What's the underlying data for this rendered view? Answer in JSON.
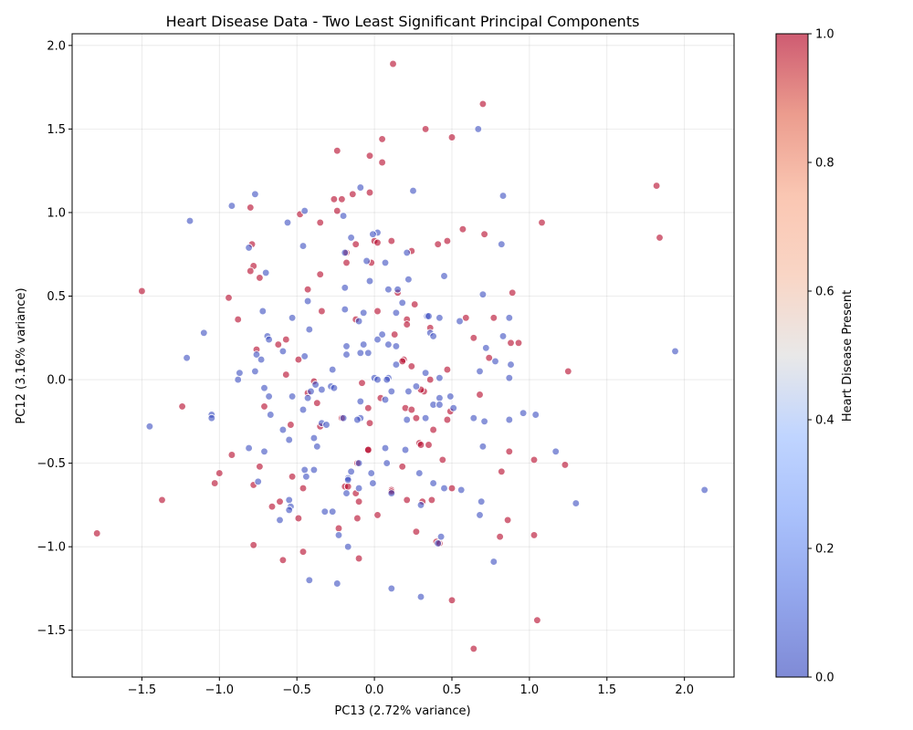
{
  "chart_data": {
    "type": "scatter",
    "title": "Heart Disease Data - Two Least Significant Principal Components",
    "xlabel": "PC13 (2.72% variance)",
    "ylabel": "PC12 (3.16% variance)",
    "xlim": [
      -1.95,
      2.32
    ],
    "ylim": [
      -1.78,
      2.07
    ],
    "grid": true,
    "xticks": [
      -1.5,
      -1.0,
      -0.5,
      0.0,
      0.5,
      1.0,
      1.5,
      2.0
    ],
    "xtick_labels": [
      "−1.5",
      "−1.0",
      "−0.5",
      "0.0",
      "0.5",
      "1.0",
      "1.5",
      "2.0"
    ],
    "yticks": [
      -1.5,
      -1.0,
      -0.5,
      0.0,
      0.5,
      1.0,
      1.5,
      2.0
    ],
    "ytick_labels": [
      "−1.5",
      "−1.0",
      "−0.5",
      "0.0",
      "0.5",
      "1.0",
      "1.5",
      "2.0"
    ],
    "colorbar": {
      "label": "Heart Disease Present",
      "colormap": "coolwarm",
      "range": [
        0,
        1
      ],
      "ticks": [
        0.0,
        0.2,
        0.4,
        0.6,
        0.8,
        1.0
      ],
      "tick_labels": [
        "0.0",
        "0.2",
        "0.4",
        "0.6",
        "0.8",
        "1.0"
      ]
    },
    "colors": {
      "class_0": "#3b4cc0",
      "class_1": "#b40426"
    },
    "series": [
      {
        "value": 1,
        "points": [
          [
            0.12,
            1.89
          ],
          [
            0.7,
            1.65
          ],
          [
            0.33,
            1.5
          ],
          [
            0.5,
            1.45
          ],
          [
            0.05,
            1.44
          ],
          [
            -0.24,
            1.37
          ],
          [
            -0.03,
            1.34
          ],
          [
            0.05,
            1.3
          ],
          [
            1.82,
            1.16
          ],
          [
            -0.14,
            1.11
          ],
          [
            -0.03,
            1.12
          ],
          [
            -0.26,
            1.08
          ],
          [
            -0.21,
            1.08
          ],
          [
            -0.8,
            1.03
          ],
          [
            -0.24,
            1.01
          ],
          [
            -0.48,
            0.99
          ],
          [
            1.08,
            0.94
          ],
          [
            -0.35,
            0.94
          ],
          [
            0.57,
            0.9
          ],
          [
            0.71,
            0.87
          ],
          [
            1.84,
            0.85
          ],
          [
            0.47,
            0.83
          ],
          [
            0.11,
            0.83
          ],
          [
            0.0,
            0.83
          ],
          [
            0.02,
            0.82
          ],
          [
            -0.12,
            0.81
          ],
          [
            0.41,
            0.81
          ],
          [
            -0.79,
            0.81
          ],
          [
            -0.18,
            0.76
          ],
          [
            0.24,
            0.77
          ],
          [
            -0.18,
            0.7
          ],
          [
            -0.02,
            0.7
          ],
          [
            -0.78,
            0.68
          ],
          [
            -0.8,
            0.65
          ],
          [
            -0.35,
            0.63
          ],
          [
            -0.74,
            0.61
          ],
          [
            -1.5,
            0.53
          ],
          [
            -0.43,
            0.54
          ],
          [
            0.15,
            0.52
          ],
          [
            0.89,
            0.52
          ],
          [
            -0.94,
            0.49
          ],
          [
            0.26,
            0.45
          ],
          [
            -0.34,
            0.41
          ],
          [
            0.02,
            0.41
          ],
          [
            0.21,
            0.36
          ],
          [
            -0.12,
            0.36
          ],
          [
            0.59,
            0.37
          ],
          [
            0.77,
            0.37
          ],
          [
            -0.88,
            0.36
          ],
          [
            0.21,
            0.33
          ],
          [
            0.36,
            0.31
          ],
          [
            0.13,
            0.27
          ],
          [
            0.64,
            0.25
          ],
          [
            -0.57,
            0.24
          ],
          [
            0.88,
            0.22
          ],
          [
            -0.62,
            0.21
          ],
          [
            0.93,
            0.22
          ],
          [
            -0.76,
            0.18
          ],
          [
            -0.49,
            0.12
          ],
          [
            0.74,
            0.13
          ],
          [
            0.19,
            0.12
          ],
          [
            0.18,
            0.11
          ],
          [
            0.24,
            0.08
          ],
          [
            0.47,
            0.06
          ],
          [
            1.25,
            0.05
          ],
          [
            -0.57,
            0.03
          ],
          [
            0.36,
            0.0
          ],
          [
            -0.08,
            -0.02
          ],
          [
            -0.39,
            -0.01
          ],
          [
            -0.43,
            -0.08
          ],
          [
            0.68,
            -0.09
          ],
          [
            0.32,
            -0.07
          ],
          [
            0.3,
            -0.06
          ],
          [
            0.04,
            -0.11
          ],
          [
            -0.37,
            -0.14
          ],
          [
            -0.71,
            -0.16
          ],
          [
            -1.24,
            -0.16
          ],
          [
            0.2,
            -0.17
          ],
          [
            -0.04,
            -0.17
          ],
          [
            0.24,
            -0.18
          ],
          [
            0.49,
            -0.19
          ],
          [
            -0.21,
            -0.23
          ],
          [
            0.27,
            -0.23
          ],
          [
            0.47,
            -0.24
          ],
          [
            -0.03,
            -0.26
          ],
          [
            -0.54,
            -0.27
          ],
          [
            -0.35,
            -0.28
          ],
          [
            0.38,
            -0.3
          ],
          [
            0.29,
            -0.38
          ],
          [
            0.3,
            -0.39
          ],
          [
            0.35,
            -0.39
          ],
          [
            -0.04,
            -0.42
          ],
          [
            -0.04,
            -0.42
          ],
          [
            0.87,
            -0.43
          ],
          [
            -0.92,
            -0.45
          ],
          [
            0.44,
            -0.48
          ],
          [
            1.03,
            -0.48
          ],
          [
            1.23,
            -0.51
          ],
          [
            -0.74,
            -0.52
          ],
          [
            0.18,
            -0.52
          ],
          [
            -0.11,
            -0.5
          ],
          [
            0.82,
            -0.55
          ],
          [
            -1.0,
            -0.56
          ],
          [
            -0.53,
            -0.58
          ],
          [
            -1.03,
            -0.62
          ],
          [
            -0.78,
            -0.63
          ],
          [
            -0.19,
            -0.64
          ],
          [
            -0.17,
            -0.64
          ],
          [
            -0.46,
            -0.65
          ],
          [
            0.5,
            -0.65
          ],
          [
            0.11,
            -0.66
          ],
          [
            0.11,
            -0.67
          ],
          [
            -0.12,
            -0.68
          ],
          [
            -1.37,
            -0.72
          ],
          [
            -0.61,
            -0.73
          ],
          [
            0.21,
            -0.72
          ],
          [
            0.31,
            -0.73
          ],
          [
            0.37,
            -0.72
          ],
          [
            -0.1,
            -0.73
          ],
          [
            -0.66,
            -0.76
          ],
          [
            0.02,
            -0.81
          ],
          [
            -0.11,
            -0.83
          ],
          [
            -0.49,
            -0.83
          ],
          [
            0.86,
            -0.84
          ],
          [
            -0.23,
            -0.89
          ],
          [
            0.27,
            -0.91
          ],
          [
            -1.79,
            -0.92
          ],
          [
            1.03,
            -0.93
          ],
          [
            0.81,
            -0.94
          ],
          [
            0.4,
            -0.97
          ],
          [
            0.42,
            -0.98
          ],
          [
            -0.78,
            -0.99
          ],
          [
            -0.46,
            -1.03
          ],
          [
            -0.59,
            -1.08
          ],
          [
            -0.1,
            -1.07
          ],
          [
            0.5,
            -1.32
          ],
          [
            1.05,
            -1.44
          ],
          [
            0.64,
            -1.61
          ]
        ]
      },
      {
        "value": 0,
        "points": [
          [
            0.67,
            1.5
          ],
          [
            0.25,
            1.13
          ],
          [
            -0.09,
            1.15
          ],
          [
            -0.77,
            1.11
          ],
          [
            0.83,
            1.1
          ],
          [
            -0.92,
            1.04
          ],
          [
            -0.45,
            1.01
          ],
          [
            -0.2,
            0.98
          ],
          [
            -1.19,
            0.95
          ],
          [
            -0.56,
            0.94
          ],
          [
            0.02,
            0.88
          ],
          [
            -0.01,
            0.87
          ],
          [
            -0.15,
            0.85
          ],
          [
            0.82,
            0.81
          ],
          [
            -0.81,
            0.79
          ],
          [
            -0.46,
            0.8
          ],
          [
            0.21,
            0.76
          ],
          [
            -0.19,
            0.76
          ],
          [
            -0.05,
            0.71
          ],
          [
            0.07,
            0.7
          ],
          [
            -0.7,
            0.64
          ],
          [
            0.45,
            0.62
          ],
          [
            0.22,
            0.6
          ],
          [
            -0.03,
            0.59
          ],
          [
            -0.19,
            0.55
          ],
          [
            0.09,
            0.54
          ],
          [
            0.15,
            0.54
          ],
          [
            0.7,
            0.51
          ],
          [
            -0.43,
            0.47
          ],
          [
            0.18,
            0.46
          ],
          [
            -0.19,
            0.42
          ],
          [
            -0.72,
            0.41
          ],
          [
            -0.07,
            0.4
          ],
          [
            0.14,
            0.4
          ],
          [
            0.34,
            0.38
          ],
          [
            0.35,
            0.38
          ],
          [
            0.42,
            0.37
          ],
          [
            -0.53,
            0.37
          ],
          [
            0.87,
            0.37
          ],
          [
            -0.1,
            0.35
          ],
          [
            0.55,
            0.35
          ],
          [
            -0.42,
            0.3
          ],
          [
            -1.1,
            0.28
          ],
          [
            0.05,
            0.27
          ],
          [
            0.36,
            0.28
          ],
          [
            0.38,
            0.26
          ],
          [
            0.83,
            0.26
          ],
          [
            -0.69,
            0.26
          ],
          [
            -0.68,
            0.24
          ],
          [
            0.02,
            0.24
          ],
          [
            -0.07,
            0.21
          ],
          [
            0.09,
            0.21
          ],
          [
            -0.18,
            0.2
          ],
          [
            0.14,
            0.2
          ],
          [
            0.72,
            0.19
          ],
          [
            -0.59,
            0.17
          ],
          [
            -0.09,
            0.16
          ],
          [
            -0.04,
            0.16
          ],
          [
            -0.18,
            0.15
          ],
          [
            -0.76,
            0.15
          ],
          [
            -0.45,
            0.14
          ],
          [
            -1.21,
            0.13
          ],
          [
            0.78,
            0.11
          ],
          [
            -0.73,
            0.12
          ],
          [
            0.14,
            0.09
          ],
          [
            0.88,
            0.09
          ],
          [
            -0.27,
            0.06
          ],
          [
            0.33,
            0.04
          ],
          [
            0.68,
            0.05
          ],
          [
            -0.77,
            0.05
          ],
          [
            -0.87,
            0.04
          ],
          [
            0.0,
            0.01
          ],
          [
            0.02,
            0.0
          ],
          [
            0.09,
            0.01
          ],
          [
            0.08,
            0.0
          ],
          [
            0.42,
            0.01
          ],
          [
            -0.88,
            0.0
          ],
          [
            0.87,
            0.01
          ],
          [
            1.94,
            0.17
          ],
          [
            -0.38,
            -0.03
          ],
          [
            0.27,
            -0.04
          ],
          [
            -0.28,
            -0.04
          ],
          [
            -0.26,
            -0.05
          ],
          [
            -0.71,
            -0.05
          ],
          [
            -0.34,
            -0.06
          ],
          [
            0.11,
            -0.07
          ],
          [
            0.22,
            -0.07
          ],
          [
            -0.41,
            -0.07
          ],
          [
            -0.53,
            -0.1
          ],
          [
            -0.68,
            -0.1
          ],
          [
            -0.43,
            -0.11
          ],
          [
            0.07,
            -0.12
          ],
          [
            0.42,
            -0.11
          ],
          [
            0.49,
            -0.1
          ],
          [
            -0.09,
            -0.13
          ],
          [
            0.38,
            -0.15
          ],
          [
            0.42,
            -0.15
          ],
          [
            0.51,
            -0.17
          ],
          [
            -0.46,
            -0.18
          ],
          [
            0.96,
            -0.2
          ],
          [
            -0.67,
            -0.21
          ],
          [
            1.04,
            -0.21
          ],
          [
            -1.05,
            -0.21
          ],
          [
            -1.05,
            -0.23
          ],
          [
            -0.2,
            -0.23
          ],
          [
            -0.09,
            -0.23
          ],
          [
            0.33,
            -0.23
          ],
          [
            0.64,
            -0.23
          ],
          [
            0.87,
            -0.24
          ],
          [
            -0.11,
            -0.24
          ],
          [
            0.21,
            -0.24
          ],
          [
            0.71,
            -0.25
          ],
          [
            -0.34,
            -0.26
          ],
          [
            -0.31,
            -0.27
          ],
          [
            -1.45,
            -0.28
          ],
          [
            -0.59,
            -0.3
          ],
          [
            -0.39,
            -0.35
          ],
          [
            -0.55,
            -0.36
          ],
          [
            0.7,
            -0.4
          ],
          [
            -0.37,
            -0.4
          ],
          [
            -0.81,
            -0.41
          ],
          [
            0.07,
            -0.41
          ],
          [
            -0.71,
            -0.43
          ],
          [
            0.2,
            -0.42
          ],
          [
            1.17,
            -0.43
          ],
          [
            -0.1,
            -0.5
          ],
          [
            0.08,
            -0.5
          ],
          [
            -0.45,
            -0.54
          ],
          [
            -0.39,
            -0.54
          ],
          [
            -0.15,
            -0.55
          ],
          [
            -0.02,
            -0.56
          ],
          [
            0.29,
            -0.56
          ],
          [
            -0.44,
            -0.58
          ],
          [
            -0.17,
            -0.59
          ],
          [
            -0.17,
            -0.6
          ],
          [
            -0.75,
            -0.61
          ],
          [
            0.38,
            -0.62
          ],
          [
            -0.01,
            -0.62
          ],
          [
            0.45,
            -0.65
          ],
          [
            -0.1,
            -0.65
          ],
          [
            0.56,
            -0.66
          ],
          [
            2.13,
            -0.66
          ],
          [
            -0.18,
            -0.68
          ],
          [
            0.11,
            -0.68
          ],
          [
            -0.55,
            -0.72
          ],
          [
            0.69,
            -0.73
          ],
          [
            1.3,
            -0.74
          ],
          [
            0.3,
            -0.75
          ],
          [
            -0.54,
            -0.76
          ],
          [
            -0.55,
            -0.78
          ],
          [
            -0.32,
            -0.79
          ],
          [
            -0.27,
            -0.79
          ],
          [
            0.68,
            -0.81
          ],
          [
            -0.61,
            -0.84
          ],
          [
            -0.23,
            -0.93
          ],
          [
            0.43,
            -0.94
          ],
          [
            0.41,
            -0.98
          ],
          [
            -0.17,
            -1.0
          ],
          [
            0.77,
            -1.09
          ],
          [
            -0.42,
            -1.2
          ],
          [
            -0.24,
            -1.22
          ],
          [
            0.11,
            -1.25
          ],
          [
            0.3,
            -1.3
          ]
        ]
      }
    ]
  }
}
